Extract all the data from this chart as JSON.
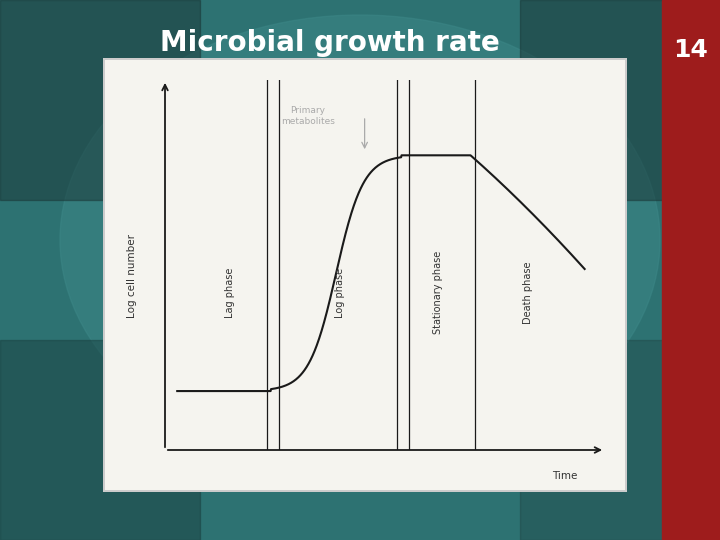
{
  "title": "Microbial growth rate",
  "title_color": "#ffffff",
  "title_fontsize": 20,
  "title_fontweight": "bold",
  "bg_center": "#2d7070",
  "bg_dark": "#1a4040",
  "badge_color": "#9e1c1c",
  "badge_text": "14",
  "badge_text_color": "#ffffff",
  "badge_fontsize": 18,
  "chart_bg": "#e8e7e0",
  "ylabel": "Log cell number",
  "xlabel": "Time",
  "annotation_text": "Primary\nmetabolites",
  "curve_color": "#1a1a1a",
  "divider_color": "#1a1a1a",
  "axis_color": "#1a1a1a",
  "label_color": "#333333",
  "phase_labels": [
    "Lag phase",
    "Log phase",
    "Stationary phase",
    "Death phase"
  ],
  "phase_label_color": "#333333"
}
